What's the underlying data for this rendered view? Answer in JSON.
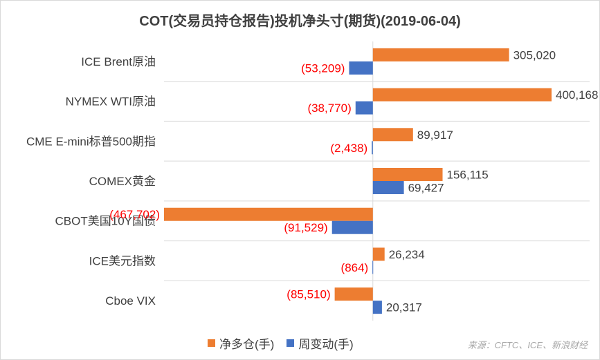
{
  "chart_data": {
    "type": "bar",
    "orientation": "horizontal",
    "title": "COT(交易员持仓报告)投机净头寸(期货)(2019-06-04)",
    "categories": [
      "ICE Brent原油",
      "NYMEX WTI原油",
      "CME E-mini标普500期指",
      "COMEX黄金",
      "CBOT美国10Y国债",
      "ICE美元指数",
      "Cboe VIX"
    ],
    "series": [
      {
        "name": "净多仓(手)",
        "color": "#ED7D31",
        "values": [
          305020,
          400168,
          89917,
          156115,
          -467702,
          26234,
          -85510
        ],
        "labels": [
          "305,020",
          "400,168",
          "89,917",
          "156,115",
          "(467,702)",
          "26,234",
          "(85,510)"
        ]
      },
      {
        "name": "周变动(手)",
        "color": "#4472C4",
        "values": [
          -53209,
          -38770,
          -2438,
          69427,
          -91529,
          -864,
          20317
        ],
        "labels": [
          "(53,209)",
          "(38,770)",
          "(2,438)",
          "69,427",
          "(91,529)",
          "(864)",
          "20,317"
        ]
      }
    ],
    "xlim": [
      -467702,
      400168
    ],
    "negative_label_color": "#FF0000",
    "positive_label_color": "#404040",
    "gridlines": "horizontal category separators",
    "legend_position": "bottom"
  },
  "source_note": "来源：CFTC、ICE、新浪财经"
}
